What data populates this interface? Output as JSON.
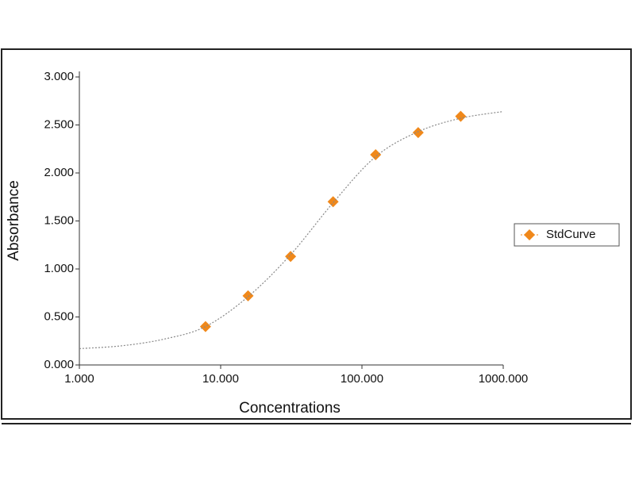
{
  "chart_data": {
    "type": "scatter",
    "x_label": "Concentrations",
    "y_label": "Absorbance",
    "xlim": [
      1,
      1000
    ],
    "x_log": true,
    "xticks": [
      {
        "value": 1,
        "label": "1.000"
      },
      {
        "value": 10,
        "label": "10.000"
      },
      {
        "value": 100,
        "label": "100.000"
      },
      {
        "value": 1000,
        "label": "1000.000"
      }
    ],
    "ylim": [
      0,
      3
    ],
    "yticks": [
      {
        "value": 0,
        "label": "0.000"
      },
      {
        "value": 0.5,
        "label": "0.500"
      },
      {
        "value": 1,
        "label": "1.000"
      },
      {
        "value": 1.5,
        "label": "1.500"
      },
      {
        "value": 2,
        "label": "2.000"
      },
      {
        "value": 2.5,
        "label": "2.500"
      },
      {
        "value": 3,
        "label": "3.000"
      }
    ],
    "legend": "right",
    "series": [
      {
        "name": "StdCurve",
        "color": "#f0881a",
        "marker": "diamond",
        "x": [
          7.8125,
          15.625,
          31.25,
          62.5,
          125,
          250,
          500
        ],
        "values": [
          0.4,
          0.72,
          1.13,
          1.7,
          2.19,
          2.42,
          2.59
        ]
      },
      {
        "color": "#888888",
        "marker": "none",
        "line": "dotted",
        "x": [
          1,
          2,
          4,
          7.8,
          15.6,
          31.3,
          62.5,
          125,
          250,
          500,
          1000
        ],
        "values": [
          0.17,
          0.2,
          0.27,
          0.4,
          0.71,
          1.15,
          1.69,
          2.17,
          2.43,
          2.57,
          2.64
        ]
      }
    ]
  }
}
